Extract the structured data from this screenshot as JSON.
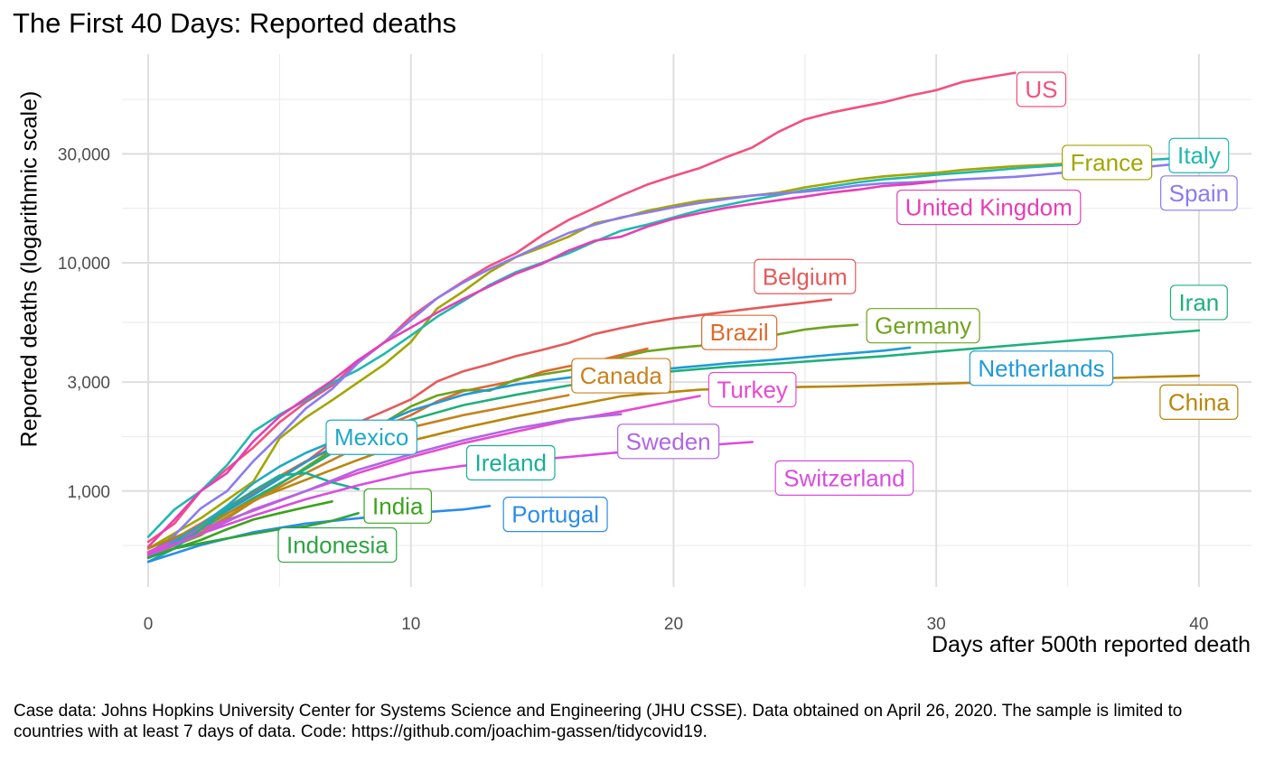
{
  "chart_data": {
    "type": "line",
    "title": "The First 40 Days: Reported deaths",
    "xlabel": "Days after 500th reported death",
    "ylabel": "Reported deaths (logarithmic scale)",
    "caption": "Case data: Johns Hopkins University Center for Systems Science and Engineering (JHU CSSE). Data obtained on April 26, 2020. The sample is limited to countries with at least 7 days of data. Code: https://github.com/joachim-gassen/tidycovid19.",
    "y_scale": "log",
    "xlim": [
      -1,
      42
    ],
    "ylim": [
      380,
      82000
    ],
    "grid": true,
    "legend": "none (direct labels)",
    "x_ticks": [
      0,
      10,
      20,
      30,
      40
    ],
    "x_tick_labels": [
      "0",
      "10",
      "20",
      "30",
      "40"
    ],
    "y_ticks": [
      1000,
      3000,
      10000,
      30000
    ],
    "y_tick_labels": [
      "1,000",
      "3,000",
      "10,000",
      "30,000"
    ],
    "series": [
      {
        "name": "US",
        "color": "#F2517E",
        "label_at": [
          34,
          57500
        ],
        "x": [
          0,
          1,
          2,
          3,
          4,
          5,
          6,
          7,
          8,
          9,
          10,
          11,
          12,
          13,
          14,
          15,
          16,
          17,
          18,
          19,
          20,
          21,
          22,
          23,
          24,
          25,
          26,
          27,
          28,
          29,
          30,
          31,
          32,
          33
        ],
        "y": [
          600,
          720,
          1000,
          1250,
          1550,
          2000,
          2450,
          2900,
          3700,
          4500,
          5800,
          7000,
          8300,
          9700,
          11000,
          13200,
          15400,
          17400,
          19700,
          22000,
          24000,
          26000,
          29000,
          32000,
          37500,
          42500,
          45500,
          48000,
          50500,
          54000,
          57000,
          62000,
          65000,
          68000
        ]
      },
      {
        "name": "France",
        "color": "#A3A500",
        "label_at": [
          36.5,
          27500
        ],
        "x": [
          0,
          2,
          4,
          5,
          6,
          7,
          8,
          9,
          10,
          11,
          12,
          13,
          14,
          15,
          16,
          17,
          18,
          19,
          20,
          21,
          22,
          23,
          24,
          25,
          26,
          27,
          28,
          29,
          30,
          31,
          32,
          33,
          34,
          35
        ],
        "y": [
          560,
          760,
          1100,
          1700,
          2100,
          2500,
          3000,
          3600,
          4500,
          6300,
          7500,
          9100,
          10600,
          11700,
          13000,
          14900,
          15700,
          16900,
          17800,
          18700,
          19200,
          19700,
          20300,
          21400,
          22300,
          23200,
          23900,
          24400,
          24800,
          25500,
          26000,
          26500,
          26800,
          27200
        ]
      },
      {
        "name": "Italy",
        "color": "#20B8B0",
        "label_at": [
          40,
          29500
        ],
        "x": [
          0,
          1,
          2,
          3,
          4,
          5,
          6,
          7,
          8,
          9,
          10,
          11,
          12,
          13,
          14,
          15,
          16,
          17,
          18,
          19,
          20,
          21,
          22,
          23,
          24,
          25,
          26,
          27,
          28,
          29,
          30,
          31,
          32,
          33,
          34,
          35,
          36,
          37,
          38,
          39,
          40
        ],
        "y": [
          630,
          830,
          1000,
          1300,
          1820,
          2160,
          2500,
          2980,
          3400,
          4000,
          4800,
          5800,
          6800,
          8000,
          9100,
          10000,
          11000,
          12400,
          13800,
          14700,
          15800,
          17000,
          17900,
          18900,
          19800,
          20800,
          21600,
          22500,
          23200,
          23700,
          24300,
          24800,
          25300,
          25900,
          26400,
          26900,
          27400,
          27900,
          28200,
          28600,
          29000
        ]
      },
      {
        "name": "Spain",
        "color": "#8B7BF0",
        "label_at": [
          40,
          20200
        ],
        "x": [
          0,
          1,
          2,
          3,
          4,
          5,
          6,
          7,
          8,
          9,
          10,
          11,
          12,
          13,
          14,
          15,
          16,
          17,
          18,
          19,
          20,
          21,
          22,
          23,
          24,
          25,
          26,
          27,
          28,
          29,
          30,
          31,
          32,
          33,
          34,
          35,
          36,
          37,
          38,
          39
        ],
        "y": [
          530,
          640,
          840,
          1000,
          1350,
          1750,
          2300,
          2800,
          3650,
          4500,
          5600,
          7000,
          8200,
          9400,
          10600,
          12000,
          13500,
          14700,
          15800,
          16600,
          17500,
          18300,
          19000,
          19700,
          20100,
          20500,
          21000,
          21800,
          22300,
          22500,
          22800,
          23200,
          23500,
          23800,
          24300,
          24900,
          25300,
          25800,
          26300,
          27000
        ]
      },
      {
        "name": "United Kingdom",
        "color": "#E83DB6",
        "label_at": [
          32,
          17500
        ],
        "x": [
          0,
          1,
          2,
          3,
          4,
          5,
          6,
          7,
          8,
          9,
          10,
          11,
          12,
          13,
          14,
          15,
          16,
          17,
          18,
          19,
          20,
          21,
          22,
          23,
          24,
          25,
          26,
          27,
          28,
          29,
          30
        ],
        "y": [
          570,
          750,
          1000,
          1200,
          1650,
          2120,
          2550,
          3050,
          3750,
          4480,
          5200,
          6050,
          6950,
          7900,
          8950,
          9900,
          11300,
          12500,
          13000,
          14400,
          15600,
          16500,
          17400,
          18100,
          18800,
          19500,
          20300,
          20900,
          21700,
          22100,
          22700
        ]
      },
      {
        "name": "Belgium",
        "color": "#E45A5A",
        "label_at": [
          25,
          8700
        ],
        "x": [
          0,
          2,
          4,
          6,
          8,
          9,
          10,
          11,
          12,
          13,
          14,
          15,
          16,
          17,
          18,
          19,
          20,
          21,
          22,
          23,
          24,
          25,
          26
        ],
        "y": [
          520,
          700,
          980,
          1340,
          2000,
          2240,
          2520,
          3020,
          3350,
          3600,
          3900,
          4150,
          4450,
          4880,
          5170,
          5450,
          5700,
          5900,
          6100,
          6300,
          6500,
          6690,
          6900
        ]
      },
      {
        "name": "Brazil",
        "color": "#DE6A2E",
        "label_at": [
          22.5,
          4950
        ],
        "x": [
          0,
          2,
          4,
          6,
          8,
          10,
          11,
          12,
          13,
          14,
          15,
          16,
          17,
          18,
          19
        ],
        "y": [
          530,
          720,
          1000,
          1350,
          1730,
          2150,
          2470,
          2740,
          2890,
          3050,
          3330,
          3520,
          3690,
          3950,
          4200
        ]
      },
      {
        "name": "Germany",
        "color": "#6FA31E",
        "label_at": [
          29.5,
          5300
        ],
        "x": [
          0,
          2,
          4,
          6,
          8,
          9,
          10,
          11,
          12,
          13,
          14,
          15,
          16,
          17,
          18,
          19,
          20,
          21,
          22,
          23,
          24,
          25,
          26,
          27
        ],
        "y": [
          520,
          640,
          900,
          1270,
          1800,
          2000,
          2350,
          2620,
          2770,
          2750,
          3080,
          3240,
          3380,
          3590,
          3860,
          4100,
          4230,
          4330,
          4500,
          4650,
          4860,
          5100,
          5250,
          5350
        ]
      },
      {
        "name": "Iran",
        "color": "#1FB07A",
        "label_at": [
          40,
          6700
        ],
        "x": [
          0,
          2,
          4,
          6,
          8,
          10,
          12,
          14,
          16,
          18,
          20,
          22,
          24,
          26,
          28,
          30,
          32,
          34,
          36,
          38,
          40
        ],
        "y": [
          510,
          680,
          930,
          1250,
          1720,
          2050,
          2380,
          2640,
          2900,
          3130,
          3350,
          3500,
          3620,
          3760,
          3900,
          4080,
          4260,
          4450,
          4650,
          4850,
          5050
        ]
      },
      {
        "name": "Netherlands",
        "color": "#1F9AD6",
        "label_at": [
          34,
          3450
        ],
        "x": [
          0,
          2,
          4,
          6,
          8,
          10,
          12,
          14,
          16,
          18,
          20,
          22,
          24,
          26,
          28,
          29
        ],
        "y": [
          540,
          700,
          960,
          1340,
          1790,
          2250,
          2640,
          2930,
          3140,
          3320,
          3450,
          3620,
          3770,
          3950,
          4120,
          4250
        ]
      },
      {
        "name": "China",
        "color": "#B8860B",
        "label_at": [
          40,
          2450
        ],
        "x": [
          0,
          2,
          4,
          6,
          8,
          10,
          12,
          14,
          16,
          17,
          18,
          19,
          20,
          21,
          22,
          23,
          24,
          25,
          26,
          27,
          28,
          29,
          30,
          32,
          34,
          36,
          38,
          40
        ],
        "y": [
          560,
          700,
          910,
          1120,
          1370,
          1660,
          1890,
          2120,
          2350,
          2470,
          2600,
          2670,
          2720,
          2780,
          2800,
          2820,
          2840,
          2860,
          2870,
          2890,
          2910,
          2930,
          2950,
          2990,
          3050,
          3110,
          3160,
          3200
        ]
      },
      {
        "name": "Canada",
        "color": "#C8811E",
        "label_at": [
          18,
          3200
        ],
        "x": [
          0,
          2,
          4,
          6,
          8,
          10,
          12,
          14,
          16
        ],
        "y": [
          510,
          660,
          900,
          1200,
          1560,
          1900,
          2150,
          2380,
          2630
        ]
      },
      {
        "name": "Turkey",
        "color": "#E84ACF",
        "label_at": [
          23,
          2780
        ],
        "x": [
          0,
          2,
          4,
          6,
          8,
          10,
          12,
          14,
          16,
          18,
          20,
          21
        ],
        "y": [
          540,
          680,
          820,
          1000,
          1200,
          1410,
          1620,
          1820,
          2040,
          2230,
          2480,
          2610
        ]
      },
      {
        "name": "Mexico",
        "color": "#1FA8C8",
        "label_at": [
          8.5,
          1720
        ],
        "x": [
          0,
          1,
          2,
          3,
          4,
          5,
          6,
          7
        ],
        "y": [
          510,
          600,
          710,
          860,
          1080,
          1280,
          1470,
          1640
        ]
      },
      {
        "name": "Ireland",
        "color": "#16B096",
        "label_at": [
          13.8,
          1330
        ],
        "x": [
          0,
          1,
          2,
          3,
          4,
          5,
          6,
          7,
          8
        ],
        "y": [
          490,
          560,
          680,
          840,
          1000,
          1170,
          1200,
          1090,
          1020
        ]
      },
      {
        "name": "Sweden",
        "color": "#B065E6",
        "label_at": [
          19.8,
          1650
        ],
        "x": [
          0,
          2,
          4,
          6,
          8,
          10,
          12,
          14,
          16,
          18
        ],
        "y": [
          520,
          650,
          830,
          1000,
          1240,
          1450,
          1670,
          1880,
          2060,
          2170
        ]
      },
      {
        "name": "Switzerland",
        "color": "#D94CE0",
        "label_at": [
          26.5,
          1140
        ],
        "x": [
          0,
          2,
          4,
          6,
          8,
          10,
          12,
          14,
          16,
          18,
          20,
          22,
          23
        ],
        "y": [
          530,
          650,
          780,
          920,
          1060,
          1200,
          1290,
          1350,
          1410,
          1480,
          1550,
          1610,
          1640
        ]
      },
      {
        "name": "India",
        "color": "#3AA31A",
        "label_at": [
          9.5,
          860
        ],
        "x": [
          0,
          1,
          2,
          3,
          4,
          5,
          6,
          7
        ],
        "y": [
          510,
          560,
          610,
          680,
          750,
          800,
          850,
          900
        ]
      },
      {
        "name": "Portugal",
        "color": "#2C8CE8",
        "label_at": [
          15.5,
          790
        ],
        "x": [
          0,
          2,
          4,
          6,
          8,
          10,
          12,
          13
        ],
        "y": [
          490,
          580,
          660,
          720,
          760,
          800,
          830,
          860
        ]
      },
      {
        "name": "Indonesia",
        "color": "#2CA43F",
        "label_at": [
          7.2,
          580
        ],
        "x": [
          0,
          1,
          2,
          3,
          4,
          5,
          6,
          7,
          8
        ],
        "y": [
          510,
          560,
          590,
          620,
          650,
          680,
          700,
          740,
          800
        ]
      }
    ]
  }
}
